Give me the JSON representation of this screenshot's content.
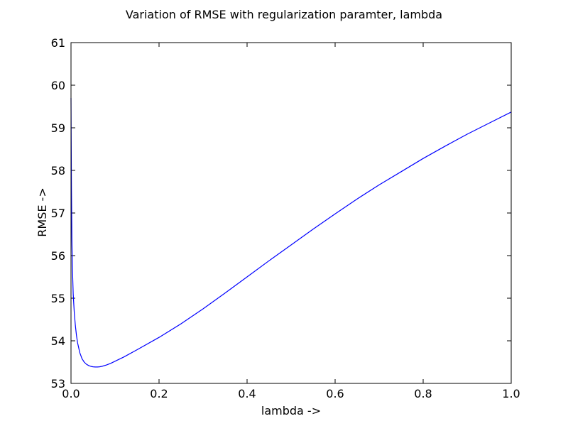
{
  "chart_data": {
    "type": "line",
    "title": "Variation of RMSE with regularization paramter, lambda",
    "xlabel": "lambda ->",
    "ylabel": "RMSE ->",
    "xlim": [
      0.0,
      1.0
    ],
    "ylim": [
      53,
      61
    ],
    "xticks": [
      "0.0",
      "0.2",
      "0.4",
      "0.6",
      "0.8",
      "1.0"
    ],
    "yticks": [
      "53",
      "54",
      "55",
      "56",
      "57",
      "58",
      "59",
      "60",
      "61"
    ],
    "grid": false,
    "series": [
      {
        "color": "#0000ff",
        "x": [
          0.0,
          0.0005,
          0.001,
          0.002,
          0.003,
          0.005,
          0.0075,
          0.01,
          0.0125,
          0.015,
          0.02,
          0.025,
          0.03,
          0.035,
          0.04,
          0.045,
          0.05,
          0.055,
          0.06,
          0.065,
          0.07,
          0.08,
          0.09,
          0.1,
          0.12,
          0.15,
          0.2,
          0.25,
          0.3,
          0.35,
          0.4,
          0.45,
          0.5,
          0.55,
          0.6,
          0.65,
          0.7,
          0.75,
          0.8,
          0.85,
          0.9,
          0.95,
          1.0
        ],
        "y": [
          59.7,
          58.6,
          57.6,
          56.4,
          55.8,
          55.1,
          54.65,
          54.35,
          54.12,
          53.95,
          53.72,
          53.58,
          53.5,
          53.45,
          53.42,
          53.4,
          53.39,
          53.385,
          53.385,
          53.39,
          53.4,
          53.43,
          53.47,
          53.52,
          53.62,
          53.79,
          54.08,
          54.4,
          54.75,
          55.12,
          55.5,
          55.88,
          56.25,
          56.62,
          56.98,
          57.33,
          57.66,
          57.97,
          58.28,
          58.57,
          58.85,
          59.11,
          59.37
        ]
      }
    ]
  }
}
